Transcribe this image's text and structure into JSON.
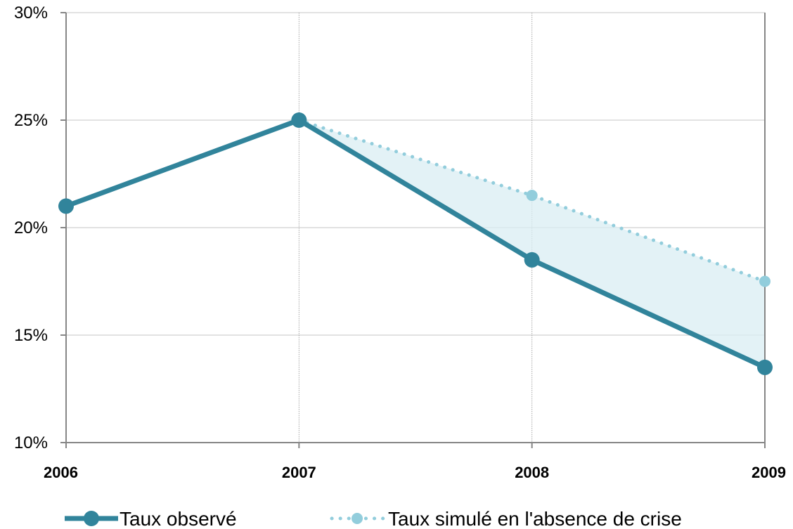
{
  "chart_data": {
    "type": "line",
    "categories": [
      "2006",
      "2007",
      "2008",
      "2009"
    ],
    "x": [
      2006,
      2007,
      2008,
      2009
    ],
    "ylim": [
      0.1,
      0.3
    ],
    "yticks": [
      0.1,
      0.15,
      0.2,
      0.25,
      0.3
    ],
    "ytick_labels": [
      "10%",
      "15%",
      "20%",
      "25%",
      "30%"
    ],
    "grid": "horizontal",
    "legend_position": "bottom",
    "fill_between_series": true,
    "series": [
      {
        "name": "Taux observé",
        "x": [
          2006,
          2007,
          2008,
          2009
        ],
        "values": [
          0.21,
          0.25,
          0.185,
          0.135
        ],
        "color": "#31849b",
        "style": "solid"
      },
      {
        "name": "Taux simulé en l'absence de crise",
        "x": [
          2007,
          2008,
          2009
        ],
        "values": [
          0.25,
          0.215,
          0.175
        ],
        "color": "#92cddc",
        "style": "dotted"
      }
    ],
    "fill_color": "#daeef3"
  }
}
